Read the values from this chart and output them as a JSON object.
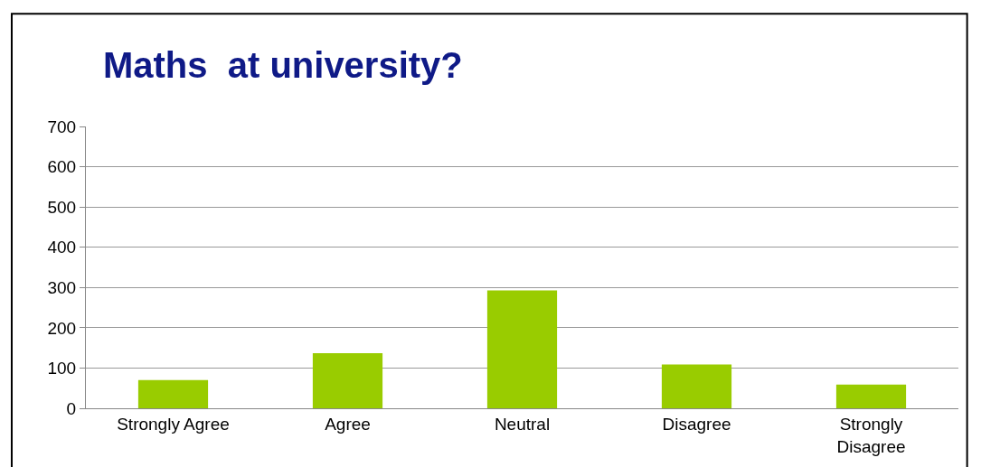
{
  "chart_data": {
    "type": "bar",
    "title": "Maths  at university?",
    "categories": [
      "Strongly Agree",
      "Agree",
      "Neutral",
      "Disagree",
      "Strongly Disagree"
    ],
    "values": [
      70,
      137,
      293,
      109,
      59
    ],
    "color": "#99cc00",
    "ylim": [
      0,
      700
    ],
    "yticks": [
      0,
      100,
      200,
      300,
      400,
      500,
      600,
      700
    ],
    "grid": "y"
  }
}
